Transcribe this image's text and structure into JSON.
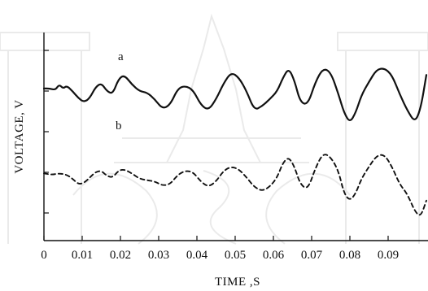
{
  "chart_data": {
    "type": "line",
    "title": "",
    "xlabel": "TIME ,S",
    "ylabel": "VOLTAGE, V",
    "xlim": [
      0,
      0.1
    ],
    "x_ticks": [
      "0",
      "0.01",
      "0.02",
      "0.03",
      "0.04",
      "0.05",
      "0.06",
      "0.07",
      "0.08",
      "0.09"
    ],
    "y_ticks_labeled": false,
    "grid": false,
    "series": [
      {
        "name": "a",
        "style": "solid",
        "x": [
          0,
          0.0015,
          0.003,
          0.004,
          0.005,
          0.006,
          0.0075,
          0.009,
          0.0105,
          0.012,
          0.0135,
          0.015,
          0.0165,
          0.018,
          0.0195,
          0.021,
          0.023,
          0.025,
          0.027,
          0.029,
          0.031,
          0.033,
          0.035,
          0.037,
          0.039,
          0.041,
          0.043,
          0.045,
          0.047,
          0.049,
          0.051,
          0.053,
          0.055,
          0.057,
          0.059,
          0.061,
          0.0625,
          0.064,
          0.0655,
          0.067,
          0.069,
          0.071,
          0.073,
          0.075,
          0.077,
          0.0785,
          0.08,
          0.0815,
          0.083,
          0.085,
          0.087,
          0.089,
          0.091,
          0.093,
          0.095,
          0.097,
          0.0985,
          0.1
        ],
        "y": [
          3.0,
          3.0,
          2.9,
          3.3,
          3.0,
          3.2,
          2.8,
          2.3,
          2.0,
          2.3,
          3.1,
          3.4,
          2.8,
          2.6,
          3.7,
          4.0,
          3.3,
          2.8,
          2.7,
          2.2,
          1.5,
          1.8,
          3.0,
          3.2,
          2.9,
          1.8,
          1.4,
          2.2,
          3.4,
          4.2,
          3.8,
          2.8,
          1.4,
          1.7,
          2.2,
          2.8,
          3.8,
          4.5,
          3.6,
          2.0,
          1.8,
          3.5,
          4.5,
          4.2,
          2.6,
          1.2,
          0.5,
          1.2,
          2.5,
          3.5,
          4.4,
          4.5,
          4.0,
          2.6,
          1.4,
          0.5,
          1.5,
          4.0
        ]
      },
      {
        "name": "b",
        "style": "dashed",
        "x": [
          0,
          0.002,
          0.004,
          0.006,
          0.0075,
          0.009,
          0.0105,
          0.012,
          0.0135,
          0.015,
          0.0165,
          0.018,
          0.0195,
          0.021,
          0.023,
          0.025,
          0.027,
          0.029,
          0.031,
          0.033,
          0.035,
          0.037,
          0.039,
          0.041,
          0.043,
          0.045,
          0.047,
          0.049,
          0.051,
          0.053,
          0.055,
          0.057,
          0.059,
          0.061,
          0.0625,
          0.064,
          0.0655,
          0.067,
          0.069,
          0.071,
          0.073,
          0.075,
          0.077,
          0.0785,
          0.08,
          0.0815,
          0.083,
          0.085,
          0.087,
          0.089,
          0.091,
          0.093,
          0.095,
          0.097,
          0.0985,
          0.1
        ],
        "y": [
          0.0,
          -0.1,
          0.0,
          -0.1,
          -0.4,
          -0.8,
          -0.7,
          -0.3,
          0.1,
          0.2,
          -0.2,
          -0.3,
          0.2,
          0.3,
          0.0,
          -0.4,
          -0.5,
          -0.6,
          -0.9,
          -0.8,
          -0.1,
          0.2,
          0.1,
          -0.6,
          -1.0,
          -0.6,
          0.2,
          0.5,
          0.3,
          -0.3,
          -1.0,
          -1.3,
          -1.0,
          -0.3,
          0.8,
          1.2,
          0.5,
          -0.8,
          -1.2,
          0.4,
          1.5,
          1.2,
          0.2,
          -1.5,
          -2.0,
          -1.5,
          -0.4,
          0.5,
          1.3,
          1.4,
          0.5,
          -0.8,
          -1.5,
          -2.8,
          -3.2,
          -2.0
        ]
      }
    ],
    "annotations": [
      "a",
      "b"
    ]
  },
  "colors": {
    "ink": "#111111",
    "watermark": "#8a8a8a"
  }
}
